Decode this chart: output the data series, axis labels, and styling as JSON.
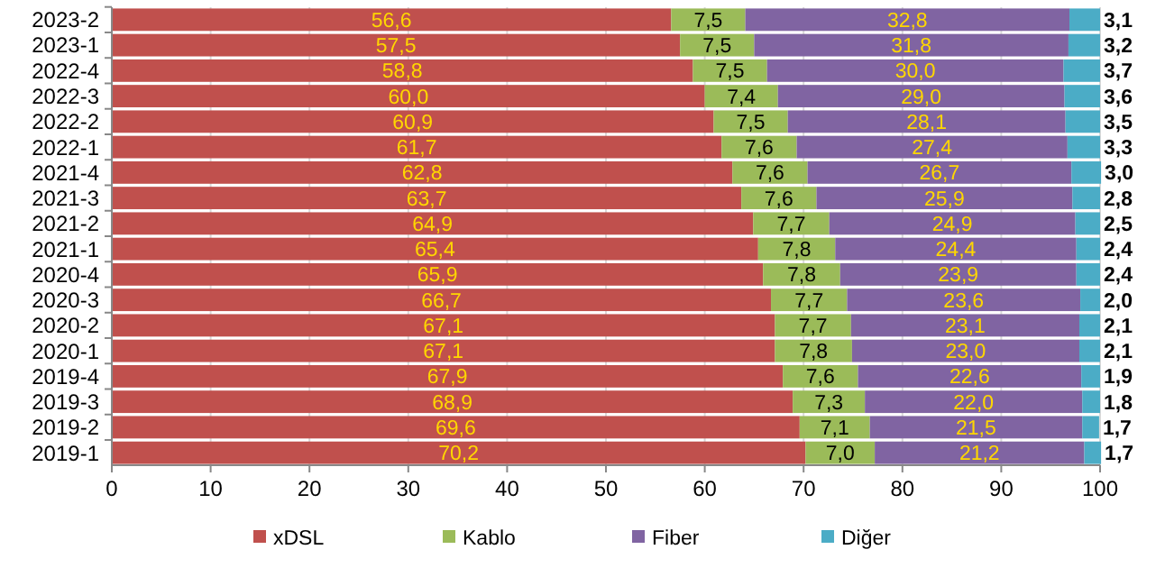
{
  "chart_data": {
    "type": "bar",
    "orientation": "horizontal",
    "stacked": true,
    "categories": [
      "2023-2",
      "2023-1",
      "2022-4",
      "2022-3",
      "2022-2",
      "2022-1",
      "2021-4",
      "2021-3",
      "2021-2",
      "2021-1",
      "2020-4",
      "2020-3",
      "2020-2",
      "2020-1",
      "2019-4",
      "2019-3",
      "2019-2",
      "2019-1"
    ],
    "series": [
      {
        "name": "xDSL",
        "color": "#c0504d",
        "values": [
          56.6,
          57.5,
          58.8,
          60.0,
          60.9,
          61.7,
          62.8,
          63.7,
          64.9,
          65.4,
          65.9,
          66.7,
          67.1,
          67.1,
          67.9,
          68.9,
          69.6,
          70.2
        ],
        "value_labels": [
          "56,6",
          "57,5",
          "58,8",
          "60,0",
          "60,9",
          "61,7",
          "62,8",
          "63,7",
          "64,9",
          "65,4",
          "65,9",
          "66,7",
          "67,1",
          "67,1",
          "67,9",
          "68,9",
          "69,6",
          "70,2"
        ]
      },
      {
        "name": "Kablo",
        "color": "#9bbb59",
        "values": [
          7.5,
          7.5,
          7.5,
          7.4,
          7.5,
          7.6,
          7.6,
          7.6,
          7.7,
          7.8,
          7.8,
          7.7,
          7.7,
          7.8,
          7.6,
          7.3,
          7.1,
          7.0
        ],
        "value_labels": [
          "7,5",
          "7,5",
          "7,5",
          "7,4",
          "7,5",
          "7,6",
          "7,6",
          "7,6",
          "7,7",
          "7,8",
          "7,8",
          "7,7",
          "7,7",
          "7,8",
          "7,6",
          "7,3",
          "7,1",
          "7,0"
        ]
      },
      {
        "name": "Fiber",
        "color": "#8064a2",
        "values": [
          32.8,
          31.8,
          30.0,
          29.0,
          28.1,
          27.4,
          26.7,
          25.9,
          24.9,
          24.4,
          23.9,
          23.6,
          23.1,
          23.0,
          22.6,
          22.0,
          21.5,
          21.2
        ],
        "value_labels": [
          "32,8",
          "31,8",
          "30,0",
          "29,0",
          "28,1",
          "27,4",
          "26,7",
          "25,9",
          "24,9",
          "24,4",
          "23,9",
          "23,6",
          "23,1",
          "23,0",
          "22,6",
          "22,0",
          "21,5",
          "21,2"
        ]
      },
      {
        "name": "Diğer",
        "color": "#4bacc6",
        "values": [
          3.1,
          3.2,
          3.7,
          3.6,
          3.5,
          3.3,
          3.0,
          2.8,
          2.5,
          2.4,
          2.4,
          2.0,
          2.1,
          2.1,
          1.9,
          1.8,
          1.7,
          1.7
        ],
        "value_labels": [
          "3,1",
          "3,2",
          "3,7",
          "3,6",
          "3,5",
          "3,3",
          "3,0",
          "2,8",
          "2,5",
          "2,4",
          "2,4",
          "2,0",
          "2,1",
          "2,1",
          "1,9",
          "1,8",
          "1,7",
          "1,7"
        ]
      }
    ],
    "xlim": [
      0,
      100
    ],
    "xticks": [
      0,
      10,
      20,
      30,
      40,
      50,
      60,
      70,
      80,
      90,
      100
    ],
    "grid": "x",
    "legend": "bottom"
  }
}
